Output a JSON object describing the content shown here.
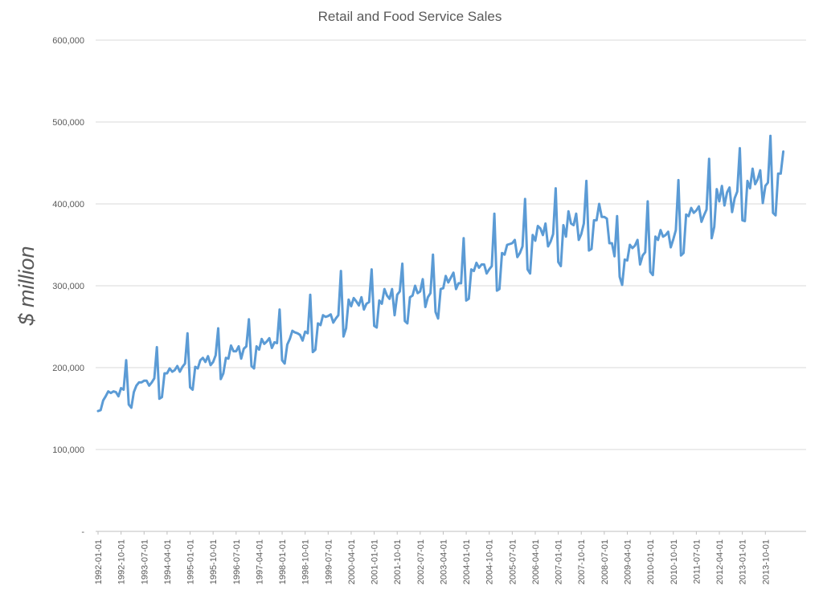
{
  "chart_data": {
    "type": "line",
    "title": "Retail and Food Service Sales",
    "xlabel": "",
    "ylabel": "$ million",
    "ylim": [
      0,
      600000
    ],
    "yticks": [
      {
        "value": 0,
        "label": "-"
      },
      {
        "value": 100000,
        "label": "100,000"
      },
      {
        "value": 200000,
        "label": "200,000"
      },
      {
        "value": 300000,
        "label": "300,000"
      },
      {
        "value": 400000,
        "label": "400,000"
      },
      {
        "value": 500000,
        "label": "500,000"
      },
      {
        "value": 600000,
        "label": "600,000"
      }
    ],
    "x_start": "1992-01-01",
    "x_frequency": "monthly",
    "x_tick_labels": [
      "1992-01-01",
      "1992-10-01",
      "1993-07-01",
      "1994-04-01",
      "1995-01-01",
      "1995-10-01",
      "1996-07-01",
      "1997-04-01",
      "1998-01-01",
      "1998-10-01",
      "1999-07-01",
      "2000-04-01",
      "2001-01-01",
      "2001-10-01",
      "2002-07-01",
      "2003-04-01",
      "2004-01-01",
      "2004-10-01",
      "2005-07-01",
      "2006-04-01",
      "2007-01-01",
      "2007-10-01",
      "2008-07-01",
      "2009-04-01",
      "2010-01-01",
      "2010-10-01",
      "2011-07-01",
      "2012-04-01",
      "2013-01-01",
      "2013-10-01"
    ],
    "grid": true,
    "legend": "none",
    "series": [
      {
        "color": "#5b9bd5",
        "values": [
          147000,
          148000,
          160000,
          165000,
          171000,
          169000,
          171000,
          170000,
          165000,
          175000,
          173000,
          209000,
          155000,
          151000,
          170000,
          178000,
          182000,
          182000,
          184000,
          184000,
          178000,
          182000,
          187000,
          225000,
          162000,
          164000,
          193000,
          193000,
          199000,
          195000,
          197000,
          202000,
          195000,
          201000,
          205000,
          242000,
          176000,
          173000,
          201000,
          199000,
          209000,
          212000,
          207000,
          214000,
          203000,
          207000,
          215000,
          248000,
          186000,
          193000,
          212000,
          211000,
          227000,
          220000,
          220000,
          226000,
          211000,
          223000,
          226000,
          259000,
          202000,
          199000,
          226000,
          222000,
          235000,
          229000,
          232000,
          236000,
          224000,
          231000,
          230000,
          271000,
          209000,
          205000,
          228000,
          235000,
          245000,
          243000,
          242000,
          240000,
          233000,
          244000,
          242000,
          289000,
          219000,
          222000,
          254000,
          252000,
          264000,
          262000,
          263000,
          265000,
          255000,
          260000,
          264000,
          318000,
          238000,
          248000,
          283000,
          275000,
          285000,
          281000,
          276000,
          286000,
          271000,
          278000,
          280000,
          320000,
          251000,
          249000,
          282000,
          278000,
          296000,
          288000,
          284000,
          296000,
          264000,
          289000,
          293000,
          327000,
          257000,
          254000,
          286000,
          288000,
          300000,
          291000,
          293000,
          308000,
          274000,
          286000,
          291000,
          338000,
          268000,
          260000,
          296000,
          297000,
          312000,
          304000,
          310000,
          316000,
          296000,
          303000,
          303000,
          358000,
          282000,
          284000,
          320000,
          318000,
          328000,
          322000,
          326000,
          326000,
          315000,
          320000,
          324000,
          388000,
          294000,
          296000,
          340000,
          338000,
          350000,
          351000,
          352000,
          356000,
          335000,
          340000,
          348000,
          406000,
          320000,
          315000,
          362000,
          355000,
          373000,
          370000,
          362000,
          376000,
          348000,
          354000,
          363000,
          419000,
          329000,
          324000,
          374000,
          360000,
          391000,
          376000,
          374000,
          388000,
          356000,
          363000,
          376000,
          428000,
          343000,
          345000,
          380000,
          380000,
          400000,
          384000,
          384000,
          382000,
          352000,
          352000,
          336000,
          385000,
          311000,
          301000,
          332000,
          331000,
          350000,
          346000,
          349000,
          356000,
          326000,
          337000,
          341000,
          403000,
          317000,
          313000,
          360000,
          356000,
          368000,
          360000,
          362000,
          366000,
          347000,
          357000,
          368000,
          429000,
          337000,
          340000,
          387000,
          385000,
          395000,
          389000,
          392000,
          397000,
          378000,
          386000,
          393000,
          455000,
          358000,
          372000,
          418000,
          403000,
          422000,
          398000,
          414000,
          420000,
          390000,
          407000,
          415000,
          468000,
          380000,
          379000,
          428000,
          419000,
          443000,
          424000,
          430000,
          441000,
          401000,
          422000,
          426000,
          483000,
          389000,
          386000,
          437000,
          437000,
          464000
        ]
      }
    ]
  }
}
